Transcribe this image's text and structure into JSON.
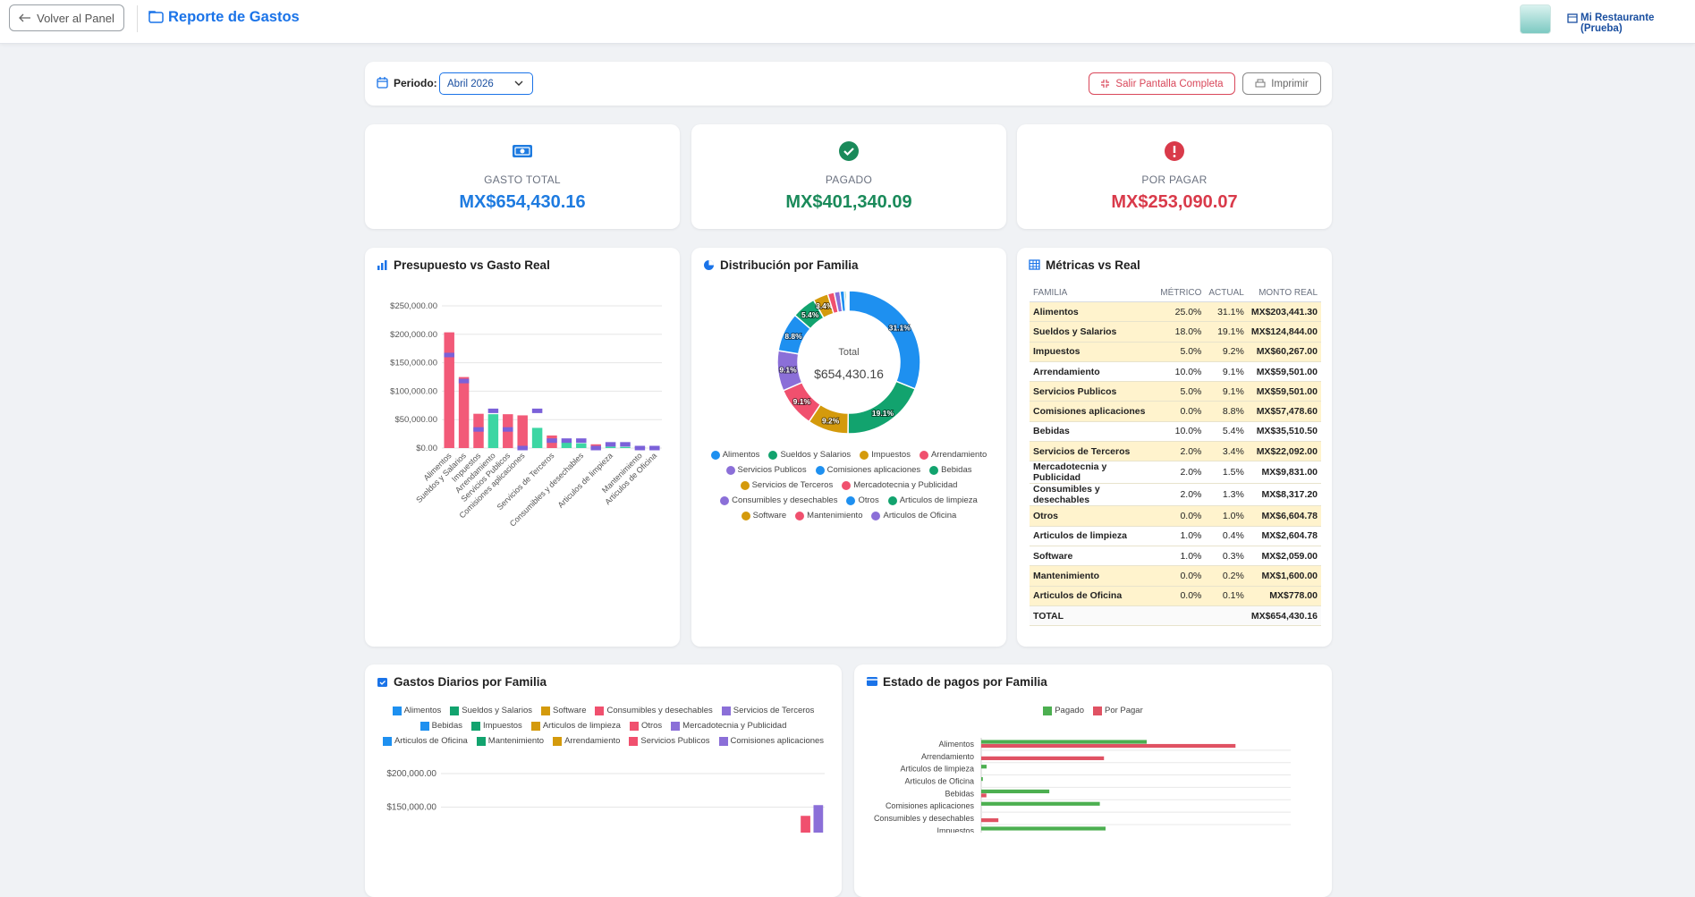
{
  "header": {
    "back_button": "Volver al Panel",
    "title": "Reporte de Gastos",
    "restaurant": "Mi Restaurante (Prueba)"
  },
  "toolbar": {
    "period_label": "Periodo:",
    "period_value": "Abril 2026",
    "exit_fullscreen": "Salir Pantalla Completa",
    "print": "Imprimir"
  },
  "kpis": [
    {
      "label": "GASTO TOTAL",
      "value": "MX$654,430.16",
      "color": "#1e7be0"
    },
    {
      "label": "PAGADO",
      "value": "MX$401,340.09",
      "color": "#1a8a5a"
    },
    {
      "label": "POR PAGAR",
      "value": "MX$253,090.07",
      "color": "#d93a4a"
    }
  ],
  "table": {
    "title": "Métricas vs Real",
    "columns": [
      "FAMILIA",
      "MÉTRICO",
      "ACTUAL",
      "MONTO REAL"
    ],
    "rows": [
      [
        "Alimentos",
        "25.0%",
        "31.1%",
        "MX$203,441.30"
      ],
      [
        "Sueldos y Salarios",
        "18.0%",
        "19.1%",
        "MX$124,844.00"
      ],
      [
        "Impuestos",
        "5.0%",
        "9.2%",
        "MX$60,267.00"
      ],
      [
        "Arrendamiento",
        "10.0%",
        "9.1%",
        "MX$59,501.00"
      ],
      [
        "Servicios Publicos",
        "5.0%",
        "9.1%",
        "MX$59,501.00"
      ],
      [
        "Comisiones aplicaciones",
        "0.0%",
        "8.8%",
        "MX$57,478.60"
      ],
      [
        "Bebidas",
        "10.0%",
        "5.4%",
        "MX$35,510.50"
      ],
      [
        "Servicios de Terceros",
        "2.0%",
        "3.4%",
        "MX$22,092.00"
      ],
      [
        "Mercadotecnia y Publicidad",
        "2.0%",
        "1.5%",
        "MX$9,831.00"
      ],
      [
        "Consumibles y desechables",
        "2.0%",
        "1.3%",
        "MX$8,317.20"
      ],
      [
        "Otros",
        "0.0%",
        "1.0%",
        "MX$6,604.78"
      ],
      [
        "Articulos de limpieza",
        "1.0%",
        "0.4%",
        "MX$2,604.78"
      ],
      [
        "Software",
        "1.0%",
        "0.3%",
        "MX$2,059.00"
      ],
      [
        "Mantenimiento",
        "0.0%",
        "0.2%",
        "MX$1,600.00"
      ],
      [
        "Articulos de Oficina",
        "0.0%",
        "0.1%",
        "MX$778.00"
      ]
    ],
    "highlight": [
      true,
      true,
      true,
      false,
      true,
      true,
      false,
      true,
      false,
      false,
      true,
      false,
      false,
      true,
      true
    ],
    "total": [
      "TOTAL",
      "MX$654,430.16"
    ]
  },
  "chart_data": [
    {
      "type": "bar",
      "title": "Presupuesto vs Gasto Real",
      "categories": [
        "Alimentos",
        "Sueldos y Salarios",
        "Impuestos",
        "Arrendamiento",
        "Servicios Publicos",
        "Comisiones aplicaciones",
        null,
        "Servicios de Terceros",
        null,
        "Consumibles y desechables",
        null,
        "Articulos de limpieza",
        null,
        "Mantenimiento",
        "Articulos de Oficina"
      ],
      "series": [
        {
          "values": [
            203441.3,
            124844.0,
            60267.0,
            59501.0,
            59501.0,
            57478.6,
            35510.5,
            22092.0,
            9831.0,
            8317.2,
            6604.78,
            2604.78,
            2059.0,
            1600.0,
            778.0
          ],
          "colors": [
            "#f25a78",
            "#f25a78",
            "#f25a78",
            "#3dd6a3",
            "#f25a78",
            "#f25a78",
            "#3dd6a3",
            "#f25a78",
            "#3dd6a3",
            "#3dd6a3",
            "#f25a78",
            "#3dd6a3",
            "#3dd6a3",
            "#f25a78",
            "#f25a78"
          ]
        },
        {
          "values": [
            163607.54,
            117797.43,
            32721.51,
            65443.02,
            32721.51,
            0,
            65443.02,
            13088.6,
            13088.6,
            13088.6,
            0,
            6544.3,
            6544.3,
            0,
            0
          ],
          "color": "#7b61d9"
        }
      ],
      "ylim": [
        0,
        250000
      ],
      "yticks": [
        {
          "value": 0,
          "label": "$0.00"
        },
        {
          "value": 50000,
          "label": "$50,000.00"
        },
        {
          "value": 100000,
          "label": "$100,000.00"
        },
        {
          "value": 150000,
          "label": "$150,000.00"
        },
        {
          "value": 200000,
          "label": "$200,000.00"
        },
        {
          "value": 250000,
          "label": "$250,000.00"
        }
      ],
      "grid": true
    },
    {
      "type": "pie",
      "donut": true,
      "title": "Distribución por Familia",
      "center_title": "Total",
      "center_value": "$654,430.16",
      "categories": [
        "Alimentos",
        "Sueldos y Salarios",
        "Impuestos",
        "Arrendamiento",
        "Servicios Publicos",
        "Comisiones aplicaciones",
        "Bebidas",
        "Servicios de Terceros",
        "Mercadotecnia y Publicidad",
        "Consumibles y desechables",
        "Otros",
        "Articulos de limpieza",
        "Software",
        "Mantenimiento",
        "Articulos de Oficina"
      ],
      "values": [
        31.1,
        19.1,
        9.2,
        9.1,
        9.1,
        8.8,
        5.4,
        3.4,
        1.5,
        1.3,
        1.0,
        0.4,
        0.3,
        0.2,
        0.1
      ],
      "value_labels": [
        "31.1%",
        "19.1%",
        "9.2%",
        "9.1%",
        "9.1%",
        "8.8%",
        "5.4%",
        "3.4%",
        null,
        null,
        null,
        null,
        null,
        null,
        null
      ],
      "colors": [
        "#1e90f0",
        "#12a36e",
        "#d49a0c",
        "#f0506e",
        "#8b6fd8",
        "#1e90f0",
        "#12a36e",
        "#d49a0c",
        "#f0506e",
        "#8b6fd8",
        "#1e90f0",
        "#12a36e",
        "#d49a0c",
        "#f0506e",
        "#8b6fd8"
      ]
    },
    {
      "type": "stacked_bar",
      "title": "Gastos Diarios por Familia",
      "categories": [
        null,
        null,
        null,
        null,
        null,
        null,
        null,
        null,
        null,
        null,
        null,
        null,
        null,
        null,
        null,
        null,
        null,
        null,
        null,
        null,
        null,
        null,
        null,
        null,
        null,
        null,
        null,
        null,
        null,
        null
      ],
      "series": [
        {
          "name": "Alimentos",
          "color": "#1e90f0",
          "values": [
            null,
            null,
            null,
            null,
            null,
            null,
            null,
            null,
            null,
            null,
            null,
            null,
            null,
            null,
            null,
            null,
            null,
            null,
            null,
            null,
            null,
            null,
            null,
            null,
            null,
            null,
            null,
            null,
            null,
            null
          ]
        },
        {
          "name": "Sueldos y Salarios",
          "color": "#12a36e",
          "values": [
            null,
            null,
            null,
            null,
            null,
            null,
            null,
            null,
            null,
            null,
            null,
            null,
            null,
            null,
            null,
            null,
            null,
            null,
            null,
            null,
            null,
            null,
            null,
            null,
            null,
            null,
            null,
            null,
            null,
            null
          ]
        },
        {
          "name": "Software",
          "color": "#d49a0c",
          "values": [
            null,
            null,
            null,
            null,
            null,
            null,
            null,
            null,
            null,
            null,
            null,
            null,
            null,
            null,
            null,
            null,
            null,
            null,
            null,
            null,
            null,
            null,
            null,
            null,
            null,
            null,
            null,
            null,
            null,
            null
          ]
        },
        {
          "name": "Consumibles y desechables",
          "color": "#f0506e",
          "values": [
            null,
            null,
            null,
            null,
            null,
            null,
            null,
            null,
            null,
            null,
            null,
            null,
            null,
            null,
            null,
            null,
            null,
            null,
            null,
            null,
            null,
            null,
            null,
            null,
            null,
            null,
            null,
            null,
            null,
            null
          ]
        },
        {
          "name": "Servicios de Terceros",
          "color": "#8b6fd8",
          "values": [
            null,
            null,
            null,
            null,
            null,
            null,
            null,
            null,
            null,
            null,
            null,
            null,
            null,
            null,
            null,
            null,
            null,
            null,
            null,
            null,
            null,
            null,
            null,
            null,
            null,
            null,
            null,
            null,
            null,
            null
          ]
        },
        {
          "name": "Bebidas",
          "color": "#1e90f0",
          "values": [
            null,
            null,
            null,
            null,
            null,
            null,
            null,
            null,
            null,
            null,
            null,
            null,
            null,
            null,
            null,
            null,
            null,
            null,
            null,
            null,
            null,
            null,
            null,
            null,
            null,
            null,
            null,
            null,
            null,
            null
          ]
        },
        {
          "name": "Impuestos",
          "color": "#12a36e",
          "values": [
            null,
            null,
            null,
            null,
            null,
            null,
            null,
            null,
            null,
            null,
            null,
            null,
            null,
            null,
            null,
            null,
            null,
            null,
            null,
            null,
            null,
            null,
            null,
            null,
            null,
            null,
            null,
            null,
            null,
            null
          ]
        },
        {
          "name": "Articulos de limpieza",
          "color": "#d49a0c",
          "values": [
            null,
            null,
            null,
            null,
            null,
            null,
            null,
            null,
            null,
            null,
            null,
            null,
            null,
            null,
            null,
            null,
            null,
            null,
            null,
            null,
            null,
            null,
            null,
            null,
            null,
            null,
            null,
            null,
            null,
            null
          ]
        },
        {
          "name": "Otros",
          "color": "#f0506e",
          "values": [
            null,
            null,
            null,
            null,
            null,
            null,
            null,
            null,
            null,
            null,
            null,
            null,
            null,
            null,
            null,
            null,
            null,
            null,
            null,
            null,
            null,
            null,
            null,
            null,
            null,
            null,
            null,
            null,
            null,
            null
          ]
        },
        {
          "name": "Mercadotecnia y Publicidad",
          "color": "#8b6fd8",
          "values": [
            null,
            null,
            null,
            null,
            null,
            null,
            null,
            null,
            null,
            null,
            null,
            null,
            null,
            null,
            null,
            null,
            null,
            null,
            null,
            null,
            null,
            null,
            null,
            null,
            null,
            null,
            null,
            null,
            null,
            null
          ]
        },
        {
          "name": "Articulos de Oficina",
          "color": "#1e90f0",
          "values": [
            null,
            null,
            null,
            null,
            null,
            null,
            null,
            null,
            null,
            null,
            null,
            null,
            null,
            null,
            null,
            null,
            null,
            null,
            null,
            null,
            null,
            null,
            null,
            null,
            null,
            null,
            null,
            null,
            null,
            null
          ]
        },
        {
          "name": "Mantenimiento",
          "color": "#12a36e",
          "values": [
            null,
            null,
            null,
            null,
            null,
            null,
            null,
            null,
            null,
            null,
            null,
            null,
            null,
            null,
            null,
            null,
            null,
            null,
            null,
            null,
            null,
            null,
            null,
            null,
            null,
            null,
            null,
            null,
            null,
            null
          ]
        },
        {
          "name": "Arrendamiento",
          "color": "#d49a0c",
          "values": [
            null,
            null,
            null,
            null,
            null,
            null,
            null,
            null,
            null,
            null,
            null,
            null,
            null,
            null,
            null,
            null,
            null,
            null,
            null,
            null,
            null,
            null,
            null,
            null,
            null,
            null,
            null,
            null,
            null,
            null
          ]
        },
        {
          "name": "Servicios Publicos",
          "color": "#f0506e",
          "values": [
            null,
            null,
            null,
            null,
            null,
            null,
            null,
            null,
            null,
            null,
            null,
            null,
            null,
            null,
            null,
            null,
            null,
            null,
            null,
            null,
            null,
            null,
            null,
            null,
            null,
            null,
            null,
            null,
            137000,
            null
          ]
        },
        {
          "name": "Comisiones aplicaciones",
          "color": "#8b6fd8",
          "values": [
            null,
            null,
            null,
            null,
            null,
            null,
            null,
            null,
            null,
            null,
            null,
            null,
            null,
            null,
            null,
            null,
            null,
            null,
            null,
            null,
            null,
            null,
            null,
            null,
            null,
            null,
            null,
            null,
            null,
            153000
          ]
        }
      ],
      "ylim": [
        0,
        200000
      ],
      "yticks": [
        {
          "value": 150000,
          "label": "$150,000.00"
        },
        {
          "value": 200000,
          "label": "$200,000.00"
        }
      ],
      "grid": true
    },
    {
      "type": "hbar",
      "title": "Estado de pagos por Familia",
      "categories": [
        "Alimentos",
        "Arrendamiento",
        "Articulos de limpieza",
        "Articulos de Oficina",
        "Bebidas",
        "Comisiones aplicaciones",
        "Consumibles y desechables",
        "Impuestos"
      ],
      "series": [
        {
          "name": "Pagado",
          "color": "#4caf50",
          "values": [
            80200,
            0,
            2604.78,
            778.0,
            33000,
            57478.6,
            0,
            60267.0
          ]
        },
        {
          "name": "Por Pagar",
          "color": "#e05263",
          "values": [
            123241.3,
            59501.0,
            0,
            0,
            2510.5,
            0,
            8317.2,
            0
          ]
        }
      ],
      "xlim": [
        0,
        150000
      ],
      "grid": true
    }
  ]
}
